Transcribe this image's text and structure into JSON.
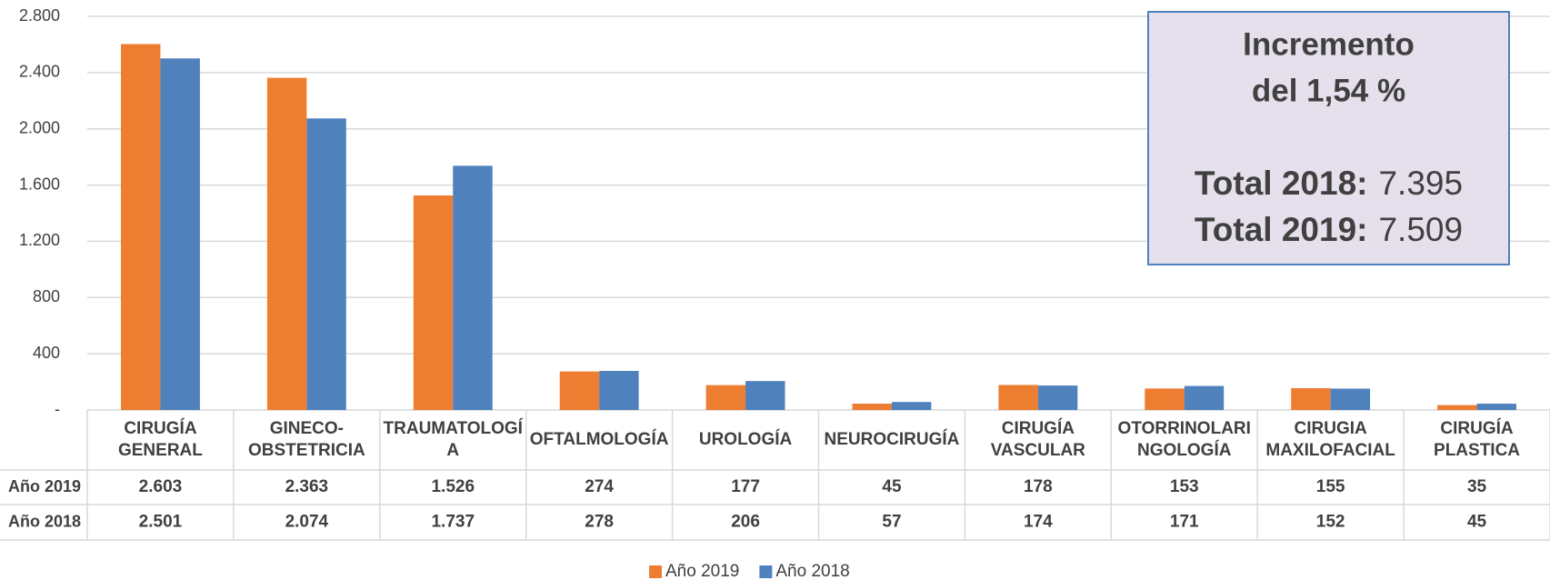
{
  "chart_data": {
    "type": "bar",
    "categories": [
      "CIRUGÍA GENERAL",
      "GINECO-OBSTETRICIA",
      "TRAUMATOLOGÍA",
      "OFTALMOLOGÍA",
      "UROLOGÍA",
      "NEUROCIRUGÍA",
      "CIRUGÍA VASCULAR",
      "OTORRINOLARINGOLOGÍA",
      "CIRUGIA MAXILOFACIAL",
      "CIRUGÍA PLASTICA"
    ],
    "series": [
      {
        "name": "Año 2019",
        "color": "#ed7d31",
        "values": [
          2603,
          2363,
          1526,
          274,
          177,
          45,
          178,
          153,
          155,
          35
        ],
        "value_labels": [
          "2.603",
          "2.363",
          "1.526",
          "274",
          "177",
          "45",
          "178",
          "153",
          "155",
          "35"
        ]
      },
      {
        "name": "Año 2018",
        "color": "#4f81bd",
        "values": [
          2501,
          2074,
          1737,
          278,
          206,
          57,
          174,
          171,
          152,
          45
        ],
        "value_labels": [
          "2.501",
          "2.074",
          "1.737",
          "278",
          "206",
          "57",
          "174",
          "171",
          "152",
          "45"
        ]
      }
    ],
    "ylim": [
      0,
      2800
    ],
    "yticks": [
      {
        "value": 0,
        "label": "-"
      },
      400,
      800,
      {
        "value": 1200,
        "label": "1.200"
      },
      {
        "value": 1600,
        "label": "1.600"
      },
      {
        "value": 2000,
        "label": "2.000"
      },
      {
        "value": 2400,
        "label": "2.400"
      },
      {
        "value": 2800,
        "label": "2.800"
      }
    ],
    "grid": true,
    "legend": "bottom",
    "annotation": {
      "title_lines": [
        "Incremento",
        "del 1,54 %"
      ],
      "totals": [
        {
          "label": "Total 2018:",
          "value": "7.395"
        },
        {
          "label": "Total 2019:",
          "value": "7.509"
        }
      ]
    }
  }
}
